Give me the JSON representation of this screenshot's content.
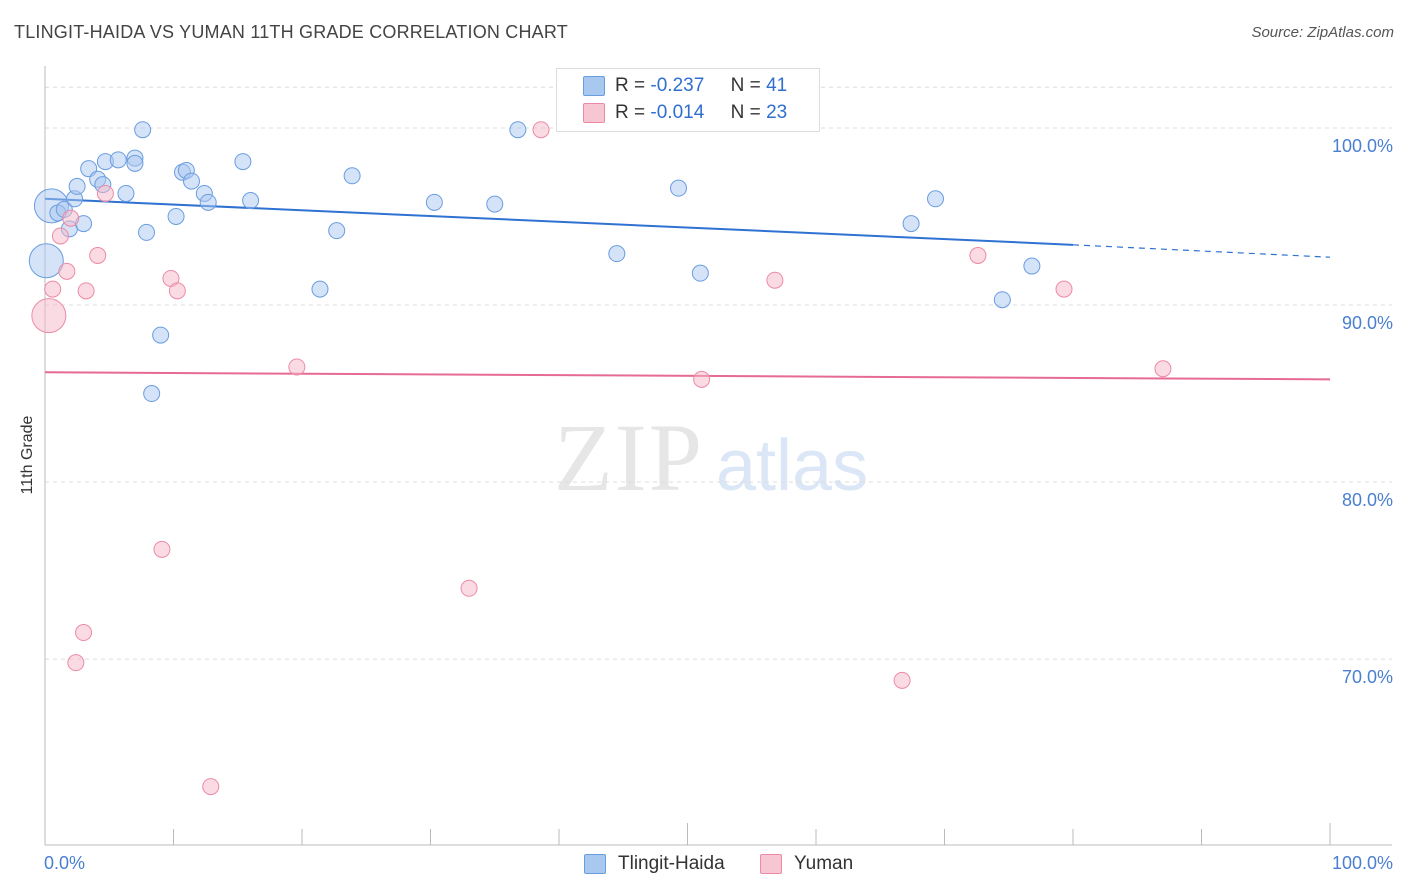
{
  "title": "TLINGIT-HAIDA VS YUMAN 11TH GRADE CORRELATION CHART",
  "source": "Source: ZipAtlas.com",
  "watermark": {
    "zip": "ZIP",
    "atlas": "atlas"
  },
  "legend": {
    "rows": [
      {
        "r_label": "R =",
        "r_value": "-0.237",
        "n_label": "N =",
        "n_value": "41"
      },
      {
        "r_label": "R =",
        "r_value": "-0.014",
        "n_label": "N =",
        "n_value": "23"
      }
    ]
  },
  "bottom_legend": [
    "Tlingit-Haida",
    "Yuman"
  ],
  "colors": {
    "blue_fill": "#a9c8f0",
    "blue_stroke": "#6a9de0",
    "blue_line": "#2f72d2",
    "pink_fill": "#f7b8c8",
    "pink_stroke": "#ec8aa6",
    "pink_line": "#e56b93",
    "tick": "#4a7fd0"
  },
  "chart_data": {
    "type": "scatter",
    "title": "TLINGIT-HAIDA VS YUMAN 11TH GRADE CORRELATION CHART",
    "xlabel": "",
    "ylabel": "11th Grade",
    "xlim": [
      0,
      100
    ],
    "ylim": [
      59.5,
      103.5
    ],
    "x_ticks": [
      "0.0%",
      "100.0%"
    ],
    "y_ticks": [
      {
        "value": 100,
        "label": "100.0%"
      },
      {
        "value": 90,
        "label": "90.0%"
      },
      {
        "value": 80,
        "label": "80.0%"
      },
      {
        "value": 70,
        "label": "70.0%"
      }
    ],
    "series": [
      {
        "name": "Tlingit-Haida",
        "color": "blue",
        "r": -0.237,
        "n": 41,
        "trend": {
          "x0": 0,
          "y0": 96.0,
          "x1": 80,
          "y1": 93.4,
          "x_dash_end": 100,
          "y_dash_end": 92.7
        },
        "points": [
          [
            0.5,
            95.6,
            "big"
          ],
          [
            1.0,
            95.2
          ],
          [
            1.5,
            95.4
          ],
          [
            1.9,
            94.3
          ],
          [
            2.3,
            96.0
          ],
          [
            2.5,
            96.7
          ],
          [
            3.0,
            94.6
          ],
          [
            3.4,
            97.7
          ],
          [
            4.1,
            97.1
          ],
          [
            4.5,
            96.8
          ],
          [
            4.7,
            98.1
          ],
          [
            5.7,
            98.2
          ],
          [
            6.3,
            96.3
          ],
          [
            7.0,
            98.3
          ],
          [
            7.0,
            98.0
          ],
          [
            7.6,
            99.9
          ],
          [
            7.9,
            94.1
          ],
          [
            9.0,
            88.3
          ],
          [
            8.3,
            85.0
          ],
          [
            10.2,
            95.0
          ],
          [
            10.7,
            97.5
          ],
          [
            11.0,
            97.6
          ],
          [
            11.4,
            97.0
          ],
          [
            12.4,
            96.3
          ],
          [
            12.7,
            95.8
          ],
          [
            15.4,
            98.1
          ],
          [
            16.0,
            95.9
          ],
          [
            21.4,
            90.9
          ],
          [
            22.7,
            94.2
          ],
          [
            23.9,
            97.3
          ],
          [
            30.3,
            95.8
          ],
          [
            35.0,
            95.7
          ],
          [
            36.8,
            99.9
          ],
          [
            44.5,
            92.9
          ],
          [
            49.3,
            96.6
          ],
          [
            51.0,
            91.8
          ],
          [
            67.4,
            94.6
          ],
          [
            69.3,
            96.0
          ],
          [
            74.5,
            90.3
          ],
          [
            76.8,
            92.2
          ],
          [
            0.1,
            92.5,
            "big"
          ]
        ]
      },
      {
        "name": "Yuman",
        "color": "pink",
        "r": -0.014,
        "n": 23,
        "trend": {
          "x0": 0,
          "y0": 86.2,
          "x1": 100,
          "y1": 85.8
        },
        "points": [
          [
            0.3,
            89.4,
            "big"
          ],
          [
            0.6,
            90.9
          ],
          [
            1.2,
            93.9
          ],
          [
            1.7,
            91.9
          ],
          [
            2.0,
            94.9
          ],
          [
            2.4,
            69.8
          ],
          [
            3.0,
            71.5
          ],
          [
            3.2,
            90.8
          ],
          [
            4.1,
            92.8
          ],
          [
            4.7,
            96.3
          ],
          [
            9.1,
            76.2
          ],
          [
            9.8,
            91.5
          ],
          [
            10.3,
            90.8
          ],
          [
            12.9,
            62.8
          ],
          [
            19.6,
            86.5
          ],
          [
            33.0,
            74.0
          ],
          [
            38.6,
            99.9
          ],
          [
            51.1,
            85.8
          ],
          [
            56.8,
            91.4
          ],
          [
            66.7,
            68.8
          ],
          [
            72.6,
            92.8
          ],
          [
            79.3,
            90.9
          ],
          [
            87.0,
            86.4
          ]
        ]
      }
    ]
  }
}
